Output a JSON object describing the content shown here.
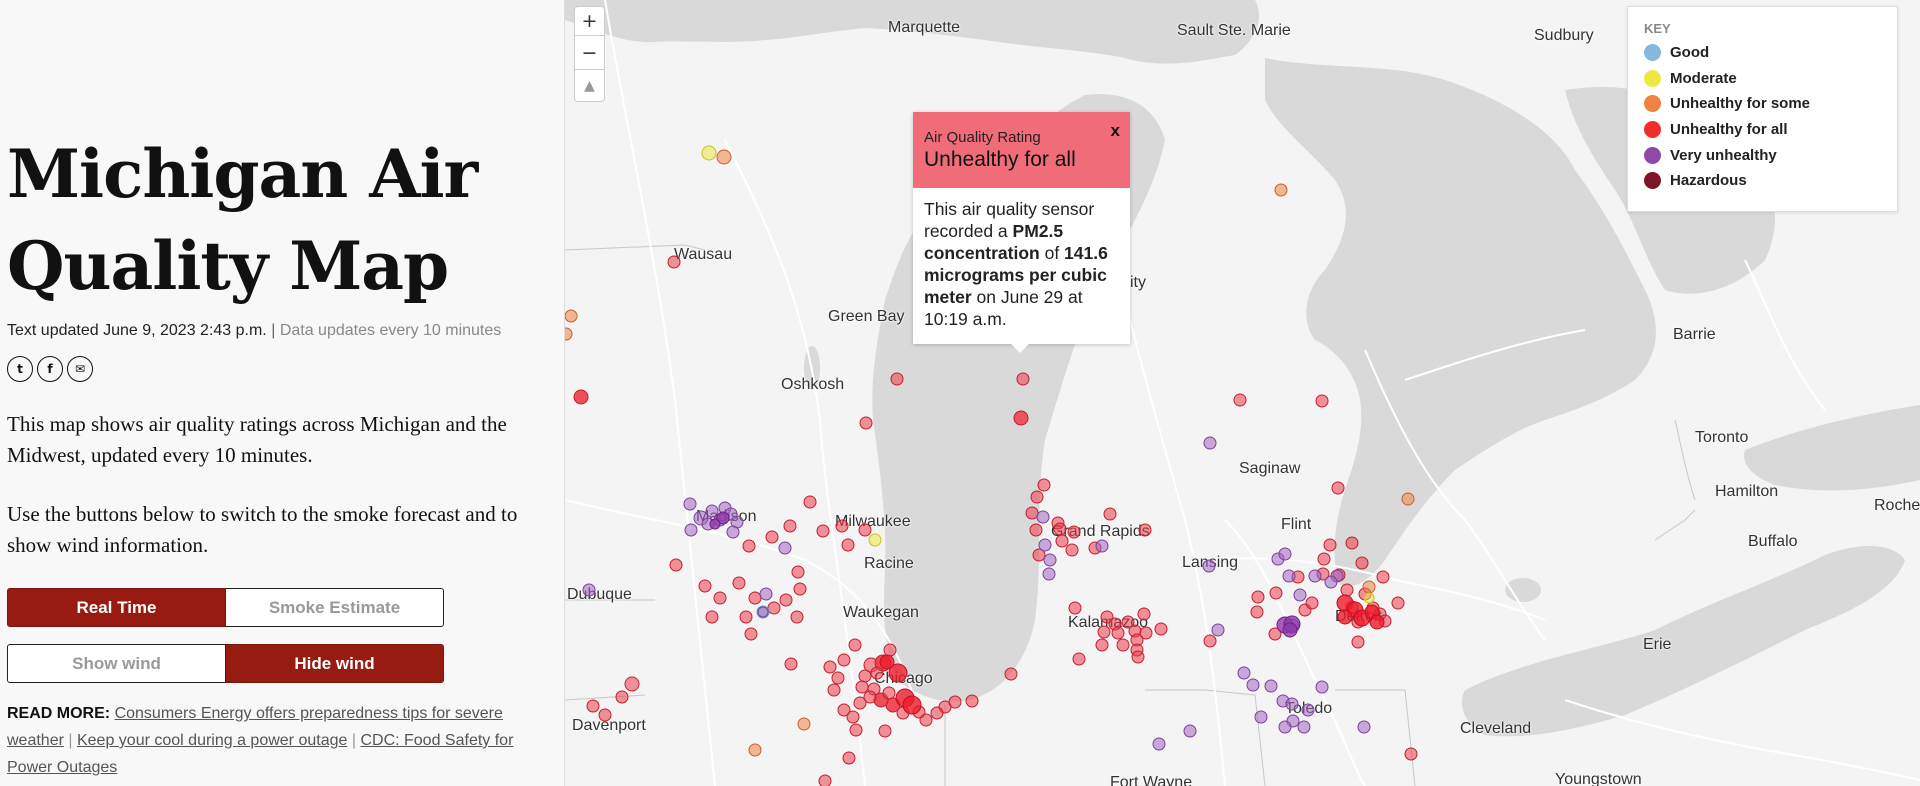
{
  "page": {
    "title": "Michigan Air Quality Map",
    "text_updated": "Text updated June 9, 2023 2:43 p.m.",
    "separator": "|",
    "data_updates": "Data updates every 10 minutes",
    "social": [
      {
        "icon": "twitter-icon",
        "glyph": "t"
      },
      {
        "icon": "facebook-icon",
        "glyph": "f"
      },
      {
        "icon": "email-icon",
        "glyph": "✉"
      }
    ],
    "intro": "This map shows air quality ratings across Michigan and the Midwest, updated every 10 minutes.",
    "instructions": "Use the buttons below to switch to the smoke forecast and to show wind information.",
    "buttons": {
      "real_time": "Real Time",
      "smoke_estimate": "Smoke Estimate",
      "show_wind": "Show wind",
      "hide_wind": "Hide wind",
      "active_mode": "Real Time",
      "active_wind": "Hide wind"
    },
    "read_more": {
      "label": "READ MORE:",
      "links": [
        "Consumers Energy offers preparedness tips for severe weather",
        "Keep your cool during a power outage",
        "CDC: Food Safety for Power Outages"
      ],
      "separator": "|"
    },
    "colors": {
      "accent": "#981b12"
    }
  },
  "map": {
    "controls": {
      "zoom_in": "+",
      "zoom_out": "−",
      "compass": "▲"
    },
    "cities": [
      {
        "name": "Marquette"
      },
      {
        "name": "Sault Ste. Marie"
      },
      {
        "name": "Sudbury"
      },
      {
        "name": "Wausau"
      },
      {
        "name": "Green Bay"
      },
      {
        "name": "Oshkosh"
      },
      {
        "name": "Barrie"
      },
      {
        "name": "Toronto"
      },
      {
        "name": "Saginaw"
      },
      {
        "name": "Hamilton"
      },
      {
        "name": "Roches"
      },
      {
        "name": "Madison"
      },
      {
        "name": "Milwaukee"
      },
      {
        "name": "Flint"
      },
      {
        "name": "Grand Rapids"
      },
      {
        "name": "Buffalo"
      },
      {
        "name": "Racine"
      },
      {
        "name": "Lansing"
      },
      {
        "name": "Dubuque"
      },
      {
        "name": "Waukegan"
      },
      {
        "name": "Detroit"
      },
      {
        "name": "Kalamazoo"
      },
      {
        "name": "Erie"
      },
      {
        "name": "Chicago"
      },
      {
        "name": "Toledo"
      },
      {
        "name": "Davenport"
      },
      {
        "name": "Cleveland"
      },
      {
        "name": "Fort Wayne"
      },
      {
        "name": "Youngstown"
      },
      {
        "name": "ity"
      }
    ],
    "legend": {
      "title": "KEY",
      "items": [
        {
          "label": "Good",
          "color": "#85b8dc"
        },
        {
          "label": "Moderate",
          "color": "#ece843"
        },
        {
          "label": "Unhealthy for some",
          "color": "#ef8240"
        },
        {
          "label": "Unhealthy for all",
          "color": "#ef2d2d"
        },
        {
          "label": "Very unhealthy",
          "color": "#8e4aa8"
        },
        {
          "label": "Hazardous",
          "color": "#7c1527"
        }
      ]
    },
    "popup": {
      "subtitle": "Air Quality Rating",
      "rating": "Unhealthy for all",
      "close": "x",
      "body_pre": "This air quality sensor recorded a ",
      "pollutant": "PM2.5 concentration",
      "body_mid": " of ",
      "value": "141.6 micrograms per cubic meter",
      "body_post": " on June 29 at 10:19 a.m."
    }
  }
}
